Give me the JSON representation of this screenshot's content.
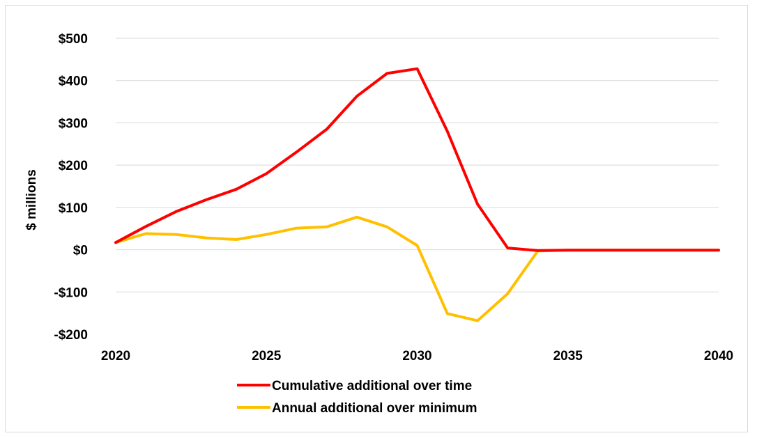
{
  "chart_data": {
    "type": "line",
    "x": [
      2020,
      2021,
      2022,
      2023,
      2024,
      2025,
      2026,
      2027,
      2028,
      2029,
      2030,
      2031,
      2032,
      2033,
      2034,
      2035,
      2036,
      2037,
      2038,
      2039,
      2040
    ],
    "series": [
      {
        "name": "Cumulative additional over time",
        "color": "#ff0000",
        "values": [
          17,
          55,
          90,
          118,
          143,
          180,
          231,
          285,
          363,
          417,
          428,
          280,
          108,
          4,
          -2,
          -1,
          -1,
          -1,
          -1,
          -1,
          -1
        ]
      },
      {
        "name": "Annual additional over minimum",
        "color": "#ffc000",
        "values": [
          17,
          38,
          36,
          28,
          24,
          36,
          51,
          54,
          77,
          54,
          10,
          -151,
          -168,
          -104,
          -3,
          -1,
          -1,
          -1,
          -1,
          -1,
          -1
        ]
      }
    ],
    "xlim": [
      2020,
      2040
    ],
    "xticks": [
      2020,
      2025,
      2030,
      2035,
      2040
    ],
    "xtick_labels": [
      "2020",
      "2025",
      "2030",
      "2035",
      "2040"
    ],
    "ylim": [
      -200,
      500
    ],
    "yticks": [
      -200,
      -100,
      0,
      100,
      200,
      300,
      400,
      500
    ],
    "ytick_labels": [
      "-$200",
      "-$100",
      "$0",
      "$100",
      "$200",
      "$300",
      "$400",
      "$500"
    ],
    "ylabel": "$ millions",
    "xlabel": "",
    "grid": "horizontal",
    "legend_position": "bottom",
    "gridline_color": "#d9d9d9"
  }
}
